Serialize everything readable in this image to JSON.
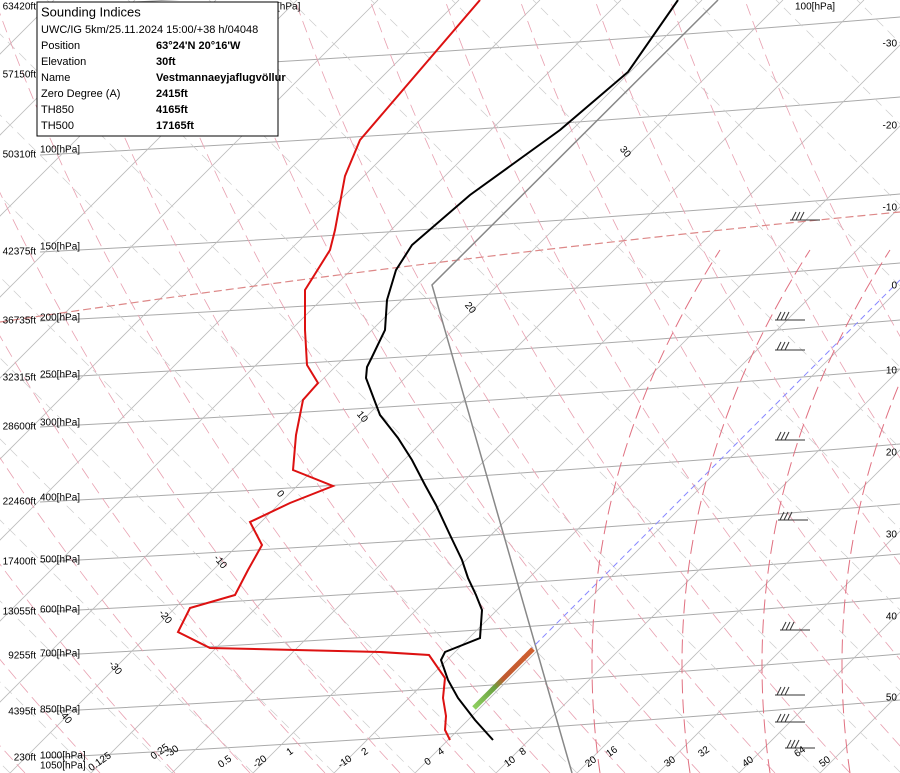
{
  "header": {
    "title": "Sounding Indices",
    "subtitle": "UWC/IG 5km/25.11.2024 15:00/+38 h/04048"
  },
  "indices": {
    "rows": [
      [
        "Position",
        "63°24'N 20°16'W"
      ],
      [
        "Elevation",
        "30ft"
      ],
      [
        "Name",
        "Vestmannaeyjaflugvöllur"
      ],
      [
        "Zero Degree (A)",
        "2415ft"
      ],
      [
        "TH850",
        "4165ft"
      ],
      [
        "TH500",
        "17165ft"
      ]
    ]
  },
  "altitude_labels": [
    "63420ft",
    "57150ft",
    "50310ft",
    "42375ft",
    "36735ft",
    "32315ft",
    "28600ft",
    "22460ft",
    "17400ft",
    "13055ft",
    "9255ft",
    "4395ft",
    "230ft"
  ],
  "pressure_labels": [
    "[hPa]",
    "100[hPa]",
    "150[hPa]",
    "200[hPa]",
    "250[hPa]",
    "300[hPa]",
    "400[hPa]",
    "500[hPa]",
    "600[hPa]",
    "700[hPa]",
    "850[hPa]",
    "1000[hPa]",
    "1050[hPa]",
    "100[hPa]"
  ],
  "right_labels": [
    "-30",
    "-20",
    "-10",
    "0",
    "10",
    "20",
    "30",
    "40",
    "50"
  ],
  "bottom_labels": [
    "0.125",
    "0.25",
    "0.5",
    "-30",
    "-20",
    "1",
    "-10",
    "2",
    "0",
    "4",
    "10",
    "8",
    "20",
    "16",
    "30",
    "32",
    "40",
    "64",
    "50"
  ],
  "adiabat_labels": [
    "30",
    "20",
    "10",
    "0",
    "-10",
    "-20",
    "-30",
    "-40"
  ]
}
